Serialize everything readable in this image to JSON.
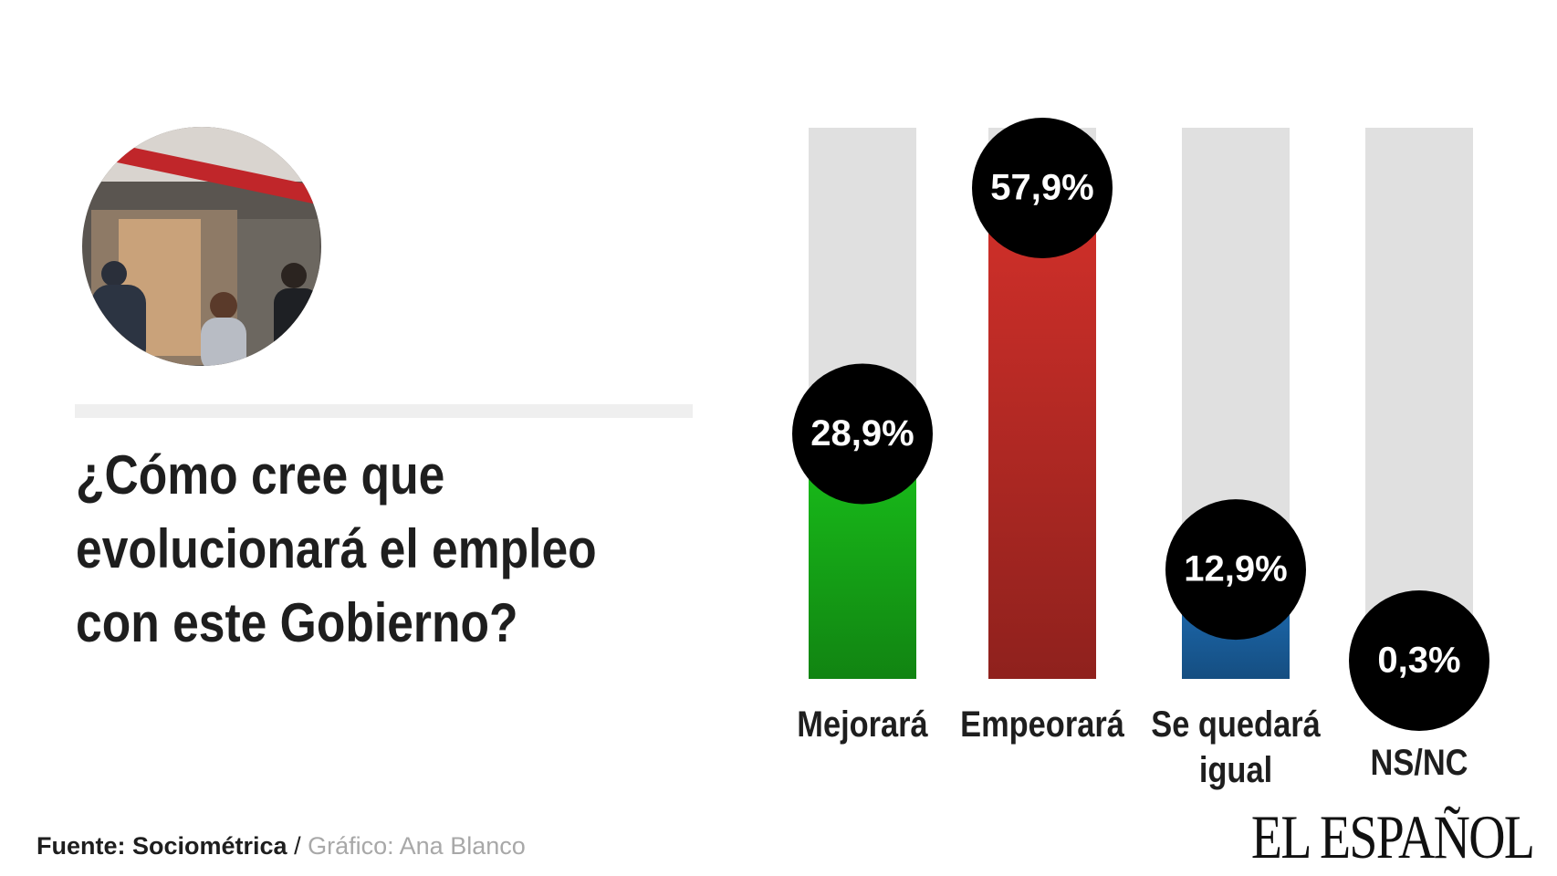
{
  "title": "¿Cómo cree que evolucionará el empleo con este Gobierno?",
  "chart_data": {
    "type": "bar",
    "categories": [
      "Mejorará",
      "Empeorará",
      "Se quedará igual",
      "NS/NC"
    ],
    "values": [
      28.9,
      57.9,
      12.9,
      0.3
    ],
    "value_labels": [
      "28,9%",
      "57,9%",
      "12,9%",
      "0,3%"
    ],
    "colors": [
      "#19c21a",
      "#d3302a",
      "#1f72bd",
      "#999999"
    ],
    "track_color": "#e0e0e0",
    "ylim": [
      0,
      65
    ]
  },
  "footer": {
    "source": "Fuente: Sociométrica",
    "separator": "/",
    "credit": "Gráfico: Ana Blanco",
    "logo": "EL ESPAÑOL"
  }
}
